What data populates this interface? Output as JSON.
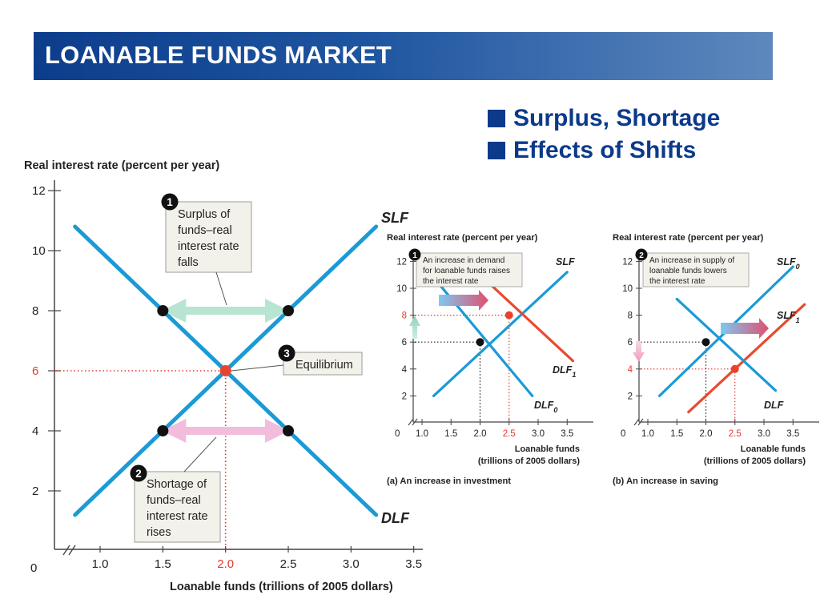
{
  "slide": {
    "title": "LOANABLE FUNDS MARKET",
    "bullets": [
      "Surplus, Shortage",
      "Effects of Shifts"
    ],
    "colors": {
      "banner_start": "#0c3d8c",
      "banner_end": "#5e88bd",
      "bullet": "#0c3a8a",
      "curve_blue": "#1a9ad6",
      "curve_red": "#e84a30",
      "highlight_red": "#e03a2a"
    }
  },
  "chart_data": [
    {
      "type": "line",
      "ylabel": "Real interest rate (percent per year)",
      "xlabel": "Loanable funds (trillions of 2005 dollars)",
      "xlim": [
        0.8,
        3.5
      ],
      "ylim": [
        0,
        12
      ],
      "x_ticks": [
        "1.0",
        "1.5",
        "2.0",
        "2.5",
        "3.0",
        "3.5"
      ],
      "y_ticks": [
        "2",
        "4",
        "6",
        "8",
        "10",
        "12"
      ],
      "origin_label": "0",
      "series": [
        {
          "name": "SLF",
          "x": [
            0.8,
            3.2
          ],
          "y": [
            1.2,
            10.8
          ]
        },
        {
          "name": "DLF",
          "x": [
            0.8,
            3.2
          ],
          "y": [
            10.8,
            1.2
          ]
        }
      ],
      "points": [
        {
          "x": 1.5,
          "y": 8
        },
        {
          "x": 2.5,
          "y": 8
        },
        {
          "x": 1.5,
          "y": 4
        },
        {
          "x": 2.5,
          "y": 4
        },
        {
          "x": 2.0,
          "y": 6,
          "equilibrium": true
        }
      ],
      "highlight": {
        "x": "2.0",
        "y": "6"
      },
      "annotations": [
        {
          "number": "1",
          "lines": [
            "Surplus of",
            "funds–real",
            "interest rate",
            "falls"
          ]
        },
        {
          "number": "2",
          "lines": [
            "Shortage of",
            "funds–real",
            "interest rate",
            "rises"
          ]
        },
        {
          "number": "3",
          "lines": [
            "Equilibrium"
          ]
        }
      ]
    },
    {
      "type": "line",
      "ylabel": "Real interest rate (percent per year)",
      "xlabel_lines": [
        "Loanable funds",
        "(trillions of 2005 dollars)"
      ],
      "caption": "(a) An increase in investment",
      "xlim": [
        0.8,
        3.5
      ],
      "ylim": [
        0,
        12
      ],
      "x_ticks": [
        "1.0",
        "1.5",
        "2.0",
        "2.5",
        "3.0",
        "3.5"
      ],
      "y_ticks": [
        "2",
        "4",
        "6",
        "8",
        "10",
        "12"
      ],
      "origin_label": "0",
      "series": [
        {
          "name": "SLF",
          "x": [
            1.2,
            3.5
          ],
          "y": [
            2.0,
            11.2
          ]
        },
        {
          "name": "DLF",
          "sub": "0",
          "x": [
            1.2,
            2.9
          ],
          "y": [
            10.8,
            2.0
          ]
        },
        {
          "name": "DLF",
          "sub": "1",
          "x": [
            2.1,
            3.6
          ],
          "y": [
            10.6,
            4.6
          ]
        }
      ],
      "points": [
        {
          "x": 2.0,
          "y": 6
        },
        {
          "x": 2.5,
          "y": 8
        }
      ],
      "highlight": {
        "x": "2.5",
        "y": "8"
      },
      "annotation": {
        "number": "1",
        "lines": [
          "An increase in demand",
          "for loanable funds raises",
          "the interest rate"
        ]
      }
    },
    {
      "type": "line",
      "ylabel": "Real interest rate (percent per year)",
      "xlabel_lines": [
        "Loanable funds",
        "(trillions of 2005 dollars)"
      ],
      "caption": "(b) An increase in saving",
      "xlim": [
        0.8,
        3.5
      ],
      "ylim": [
        0,
        12
      ],
      "x_ticks": [
        "1.0",
        "1.5",
        "2.0",
        "2.5",
        "3.0",
        "3.5"
      ],
      "y_ticks": [
        "2",
        "4",
        "6",
        "8",
        "10",
        "12"
      ],
      "origin_label": "0",
      "series": [
        {
          "name": "SLF",
          "sub": "0",
          "x": [
            1.2,
            3.5
          ],
          "y": [
            2.0,
            11.6
          ]
        },
        {
          "name": "SLF",
          "sub": "1",
          "x": [
            1.7,
            3.7
          ],
          "y": [
            0.8,
            8.8
          ]
        },
        {
          "name": "DLF",
          "x": [
            1.5,
            3.2
          ],
          "y": [
            9.2,
            2.4
          ]
        }
      ],
      "points": [
        {
          "x": 2.0,
          "y": 6
        },
        {
          "x": 2.5,
          "y": 4
        }
      ],
      "highlight": {
        "x": "2.5",
        "y": "4"
      },
      "annotation": {
        "number": "2",
        "lines": [
          "An increase in supply of",
          "loanable funds lowers",
          "the interest rate"
        ]
      }
    }
  ]
}
